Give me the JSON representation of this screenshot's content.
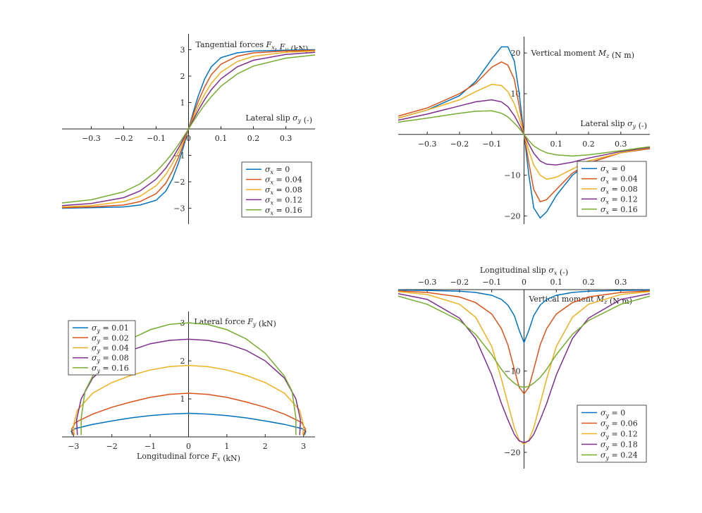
{
  "colors": [
    "#0072BD",
    "#D95319",
    "#EDB120",
    "#7E2F8E",
    "#77AC30"
  ],
  "chart_data": [
    {
      "type": "line",
      "title": "",
      "ylabel": "Tangential forces F_x, F_y (kN)",
      "xlabel": "Lateral slip σ_y (-)",
      "xlim": [
        -0.39,
        0.39
      ],
      "ylim": [
        -3.6,
        3.6
      ],
      "xticks": [
        -0.3,
        -0.2,
        -0.1,
        0,
        0.1,
        0.2,
        0.3
      ],
      "xtick_labels": [
        "−0.3",
        "−0.2",
        "−0.1",
        "0",
        "0.1",
        "0.2",
        "0.3"
      ],
      "yticks": [
        -3,
        -2,
        -1,
        1,
        2,
        3
      ],
      "ytick_labels": [
        "−3",
        "−2",
        "−1",
        "1",
        "2",
        "3"
      ],
      "legend_position": "bottom-right",
      "series": [
        {
          "name": "σ_x = 0",
          "label": "σx = 0",
          "x": [
            -0.39,
            -0.3,
            -0.2,
            -0.15,
            -0.1,
            -0.07,
            -0.05,
            -0.03,
            -0.015,
            0,
            0.015,
            0.03,
            0.05,
            0.07,
            0.1,
            0.15,
            0.2,
            0.3,
            0.39
          ],
          "y": [
            -3.0,
            -2.98,
            -2.95,
            -2.88,
            -2.7,
            -2.35,
            -1.9,
            -1.25,
            -0.65,
            0,
            0.65,
            1.25,
            1.9,
            2.35,
            2.7,
            2.88,
            2.95,
            2.98,
            3.0
          ]
        },
        {
          "name": "σ_x = 0.04",
          "label": "σx = 0.04",
          "x": [
            -0.39,
            -0.3,
            -0.2,
            -0.15,
            -0.1,
            -0.07,
            -0.05,
            -0.03,
            -0.015,
            0,
            0.015,
            0.03,
            0.05,
            0.07,
            0.1,
            0.15,
            0.2,
            0.3,
            0.39
          ],
          "y": [
            -2.98,
            -2.95,
            -2.88,
            -2.75,
            -2.45,
            -2.05,
            -1.6,
            -1.05,
            -0.55,
            0,
            0.55,
            1.05,
            1.6,
            2.05,
            2.45,
            2.75,
            2.88,
            2.95,
            2.98
          ]
        },
        {
          "name": "σ_x = 0.08",
          "label": "σx = 0.08",
          "x": [
            -0.39,
            -0.3,
            -0.2,
            -0.15,
            -0.1,
            -0.07,
            -0.05,
            -0.03,
            -0.015,
            0,
            0.015,
            0.03,
            0.05,
            0.07,
            0.1,
            0.15,
            0.2,
            0.3,
            0.39
          ],
          "y": [
            -2.95,
            -2.9,
            -2.75,
            -2.55,
            -2.15,
            -1.72,
            -1.32,
            -0.85,
            -0.43,
            0,
            0.43,
            0.85,
            1.32,
            1.72,
            2.15,
            2.55,
            2.75,
            2.9,
            2.95
          ]
        },
        {
          "name": "σ_x = 0.12",
          "label": "σx = 0.12",
          "x": [
            -0.39,
            -0.3,
            -0.2,
            -0.15,
            -0.1,
            -0.07,
            -0.05,
            -0.03,
            -0.015,
            0,
            0.015,
            0.03,
            0.05,
            0.07,
            0.1,
            0.15,
            0.2,
            0.3,
            0.39
          ],
          "y": [
            -2.9,
            -2.82,
            -2.6,
            -2.35,
            -1.9,
            -1.48,
            -1.12,
            -0.7,
            -0.36,
            0,
            0.36,
            0.7,
            1.12,
            1.48,
            1.9,
            2.35,
            2.6,
            2.82,
            2.9
          ]
        },
        {
          "name": "σ_x = 0.16",
          "label": "σx = 0.16",
          "x": [
            -0.39,
            -0.3,
            -0.2,
            -0.15,
            -0.1,
            -0.07,
            -0.05,
            -0.03,
            -0.015,
            0,
            0.015,
            0.03,
            0.05,
            0.07,
            0.1,
            0.15,
            0.2,
            0.3,
            0.39
          ],
          "y": [
            -2.8,
            -2.68,
            -2.38,
            -2.08,
            -1.62,
            -1.22,
            -0.92,
            -0.57,
            -0.29,
            0,
            0.29,
            0.57,
            0.92,
            1.22,
            1.62,
            2.08,
            2.38,
            2.68,
            2.8
          ]
        }
      ]
    },
    {
      "type": "line",
      "title": "",
      "ylabel": "Vertical moment M_z (N m)",
      "xlabel": "Lateral slip σ_y (-)",
      "xlim": [
        -0.39,
        0.39
      ],
      "ylim": [
        -22,
        24
      ],
      "xticks": [
        -0.3,
        -0.2,
        -0.1,
        0.1,
        0.2,
        0.3
      ],
      "xtick_labels": [
        "−0.3",
        "−0.2",
        "−0.1",
        "0.1",
        "0.2",
        "0.3"
      ],
      "yticks": [
        -20,
        -10,
        10,
        20
      ],
      "ytick_labels": [
        "−20",
        "−10",
        "10",
        "20"
      ],
      "legend_position": "bottom-right",
      "series": [
        {
          "name": "σ_x = 0",
          "label": "σx = 0",
          "x": [
            -0.39,
            -0.3,
            -0.2,
            -0.15,
            -0.1,
            -0.07,
            -0.05,
            -0.03,
            -0.015,
            0,
            0.015,
            0.03,
            0.05,
            0.07,
            0.1,
            0.15,
            0.2,
            0.3,
            0.39
          ],
          "y": [
            4,
            6,
            9.5,
            13,
            18.5,
            21.5,
            21.5,
            18,
            10,
            0,
            -10,
            -18,
            -20.5,
            -19,
            -15,
            -10,
            -7,
            -4.5,
            -3.5
          ]
        },
        {
          "name": "σ_x = 0.04",
          "label": "σx = 0.04",
          "x": [
            -0.39,
            -0.3,
            -0.2,
            -0.15,
            -0.1,
            -0.07,
            -0.05,
            -0.03,
            -0.015,
            0,
            0.015,
            0.03,
            0.05,
            0.07,
            0.1,
            0.15,
            0.2,
            0.3,
            0.39
          ],
          "y": [
            4.5,
            6.5,
            10,
            12.5,
            16.5,
            17.8,
            17,
            13.5,
            7,
            0,
            -7,
            -13.5,
            -16.5,
            -16,
            -13.5,
            -9.5,
            -7,
            -4.5,
            -3.5
          ]
        },
        {
          "name": "σ_x = 0.08",
          "label": "σx = 0.08",
          "x": [
            -0.39,
            -0.3,
            -0.2,
            -0.15,
            -0.1,
            -0.07,
            -0.05,
            -0.03,
            -0.015,
            0,
            0.015,
            0.03,
            0.05,
            0.07,
            0.1,
            0.15,
            0.2,
            0.3,
            0.39
          ],
          "y": [
            4,
            6,
            8.5,
            10.5,
            12.3,
            12,
            10.5,
            7.5,
            4,
            0,
            -4,
            -7.5,
            -10,
            -11,
            -10.5,
            -8.5,
            -6.5,
            -4.5,
            -3.3
          ]
        },
        {
          "name": "σ_x = 0.12",
          "label": "σx = 0.12",
          "x": [
            -0.39,
            -0.3,
            -0.2,
            -0.15,
            -0.1,
            -0.07,
            -0.05,
            -0.03,
            -0.015,
            0,
            0.015,
            0.03,
            0.05,
            0.07,
            0.1,
            0.15,
            0.2,
            0.3,
            0.39
          ],
          "y": [
            3.5,
            5,
            7,
            8,
            8.5,
            8,
            6.8,
            4.6,
            2.4,
            0,
            -2.4,
            -4.6,
            -6.5,
            -7.3,
            -7.5,
            -6.8,
            -5.8,
            -4.2,
            -3.2
          ]
        },
        {
          "name": "σ_x = 0.16",
          "label": "σx = 0.16",
          "x": [
            -0.39,
            -0.3,
            -0.2,
            -0.15,
            -0.1,
            -0.07,
            -0.05,
            -0.03,
            -0.015,
            0,
            0.015,
            0.03,
            0.05,
            0.07,
            0.1,
            0.15,
            0.2,
            0.3,
            0.39
          ],
          "y": [
            3,
            4,
            5.2,
            5.7,
            5.8,
            5.2,
            4.3,
            2.8,
            1.5,
            0,
            -1.5,
            -2.8,
            -3.8,
            -4.5,
            -5,
            -5.3,
            -5,
            -4,
            -3
          ]
        }
      ]
    },
    {
      "type": "line",
      "title": "",
      "ylabel": "Lateral force F_y (kN)",
      "xlabel": "Longitudinal force F_x (kN)",
      "xlim": [
        -3.3,
        3.3
      ],
      "ylim": [
        0,
        3.3
      ],
      "xticks": [
        -3,
        -2,
        -1,
        0,
        1,
        2,
        3
      ],
      "xtick_labels": [
        "−3",
        "−2",
        "−1",
        "0",
        "1",
        "2",
        "3"
      ],
      "yticks": [
        1,
        2,
        3
      ],
      "ytick_labels": [
        "1",
        "2",
        "3"
      ],
      "legend_position": "top-left",
      "series": [
        {
          "name": "σ_y = 0.01",
          "label": "σy = 0.01",
          "x": [
            -3.02,
            -3.06,
            -2.95,
            -2.5,
            -2,
            -1.5,
            -1,
            -0.5,
            0,
            0.5,
            1,
            1.5,
            2,
            2.5,
            2.95,
            3.06,
            3.02
          ],
          "y": [
            0.05,
            0.15,
            0.22,
            0.33,
            0.42,
            0.5,
            0.56,
            0.6,
            0.62,
            0.6,
            0.56,
            0.5,
            0.42,
            0.33,
            0.22,
            0.15,
            0.05
          ]
        },
        {
          "name": "σ_y = 0.02",
          "label": "σy = 0.02",
          "x": [
            -3.0,
            -3.05,
            -2.95,
            -2.5,
            -2,
            -1.5,
            -1,
            -0.5,
            0,
            0.5,
            1,
            1.5,
            2,
            2.5,
            2.95,
            3.05,
            3.0
          ],
          "y": [
            0.05,
            0.2,
            0.38,
            0.6,
            0.78,
            0.92,
            1.04,
            1.12,
            1.15,
            1.12,
            1.04,
            0.92,
            0.78,
            0.6,
            0.38,
            0.2,
            0.05
          ]
        },
        {
          "name": "σ_y = 0.04",
          "label": "σy = 0.04",
          "x": [
            -2.98,
            -3.0,
            -2.9,
            -2.5,
            -2,
            -1.5,
            -1,
            -0.5,
            0,
            0.5,
            1,
            1.5,
            2,
            2.5,
            2.9,
            3.0,
            2.98
          ],
          "y": [
            0.05,
            0.3,
            0.7,
            1.15,
            1.43,
            1.62,
            1.76,
            1.85,
            1.88,
            1.85,
            1.76,
            1.62,
            1.43,
            1.15,
            0.7,
            0.3,
            0.05
          ]
        },
        {
          "name": "σ_y = 0.08",
          "label": "σy = 0.08",
          "x": [
            -2.9,
            -2.92,
            -2.8,
            -2.5,
            -2,
            -1.5,
            -1,
            -0.5,
            0,
            0.5,
            1,
            1.5,
            2,
            2.5,
            2.8,
            2.92,
            2.9
          ],
          "y": [
            0.05,
            0.45,
            1.0,
            1.55,
            2.0,
            2.28,
            2.45,
            2.54,
            2.57,
            2.54,
            2.45,
            2.28,
            2.0,
            1.55,
            1.0,
            0.45,
            0.05
          ]
        },
        {
          "name": "σ_y = 0.16",
          "label": "σy = 0.16",
          "x": [
            -2.8,
            -2.8,
            -2.7,
            -2.5,
            -2,
            -1.5,
            -1,
            -0.5,
            0,
            0.5,
            1,
            1.5,
            2,
            2.5,
            2.7,
            2.8,
            2.8
          ],
          "y": [
            0.05,
            0.5,
            1.2,
            1.6,
            2.2,
            2.58,
            2.82,
            2.96,
            3.0,
            2.96,
            2.82,
            2.58,
            2.2,
            1.6,
            1.2,
            0.5,
            0.05
          ]
        }
      ]
    },
    {
      "type": "line",
      "title": "",
      "ylabel": "Vertical moment M_z (N m)",
      "xlabel": "Longitudinal slip σ_x (-)",
      "xlim": [
        -0.39,
        0.39
      ],
      "ylim": [
        -22,
        0
      ],
      "xticks": [
        -0.3,
        -0.2,
        -0.1,
        0,
        0.1,
        0.2,
        0.3
      ],
      "xtick_labels": [
        "−0.3",
        "−0.2",
        "−0.1",
        "0",
        "0.1",
        "0.2",
        "0.3"
      ],
      "yticks": [
        -20,
        -10
      ],
      "ytick_labels": [
        "−20",
        "−10"
      ],
      "legend_position": "bottom-right",
      "series": [
        {
          "name": "σ_y = 0",
          "label": "σy = 0",
          "x": [
            -0.39,
            -0.3,
            -0.2,
            -0.15,
            -0.1,
            -0.07,
            -0.05,
            -0.03,
            -0.015,
            0,
            0.015,
            0.03,
            0.05,
            0.07,
            0.1,
            0.15,
            0.2,
            0.3,
            0.39
          ],
          "y": [
            -0.05,
            -0.1,
            -0.2,
            -0.35,
            -0.7,
            -1.2,
            -1.9,
            -3.2,
            -5.0,
            -6.5,
            -5.0,
            -3.2,
            -1.9,
            -1.2,
            -0.7,
            -0.35,
            -0.2,
            -0.1,
            -0.05
          ]
        },
        {
          "name": "σ_y = 0.06",
          "label": "σy = 0.06",
          "x": [
            -0.39,
            -0.3,
            -0.2,
            -0.15,
            -0.1,
            -0.07,
            -0.05,
            -0.03,
            -0.015,
            0,
            0.015,
            0.03,
            0.05,
            0.07,
            0.1,
            0.15,
            0.2,
            0.3,
            0.39
          ],
          "y": [
            -0.15,
            -0.35,
            -0.9,
            -1.6,
            -3.0,
            -4.8,
            -6.8,
            -9.8,
            -12.0,
            -12.8,
            -12.0,
            -9.8,
            -6.8,
            -4.8,
            -3.0,
            -1.6,
            -0.9,
            -0.35,
            -0.15
          ]
        },
        {
          "name": "σ_y = 0.12",
          "label": "σy = 0.12",
          "x": [
            -0.39,
            -0.3,
            -0.2,
            -0.15,
            -0.1,
            -0.07,
            -0.05,
            -0.03,
            -0.015,
            0,
            0.015,
            0.03,
            0.05,
            0.07,
            0.1,
            0.15,
            0.2,
            0.3,
            0.39
          ],
          "y": [
            -0.25,
            -0.6,
            -1.8,
            -3.4,
            -7.0,
            -11.0,
            -14.0,
            -17.0,
            -18.5,
            -19.0,
            -18.5,
            -17.0,
            -14.0,
            -11.0,
            -7.0,
            -3.4,
            -1.8,
            -0.6,
            -0.25
          ]
        },
        {
          "name": "σ_y = 0.18",
          "label": "σy = 0.18",
          "x": [
            -0.39,
            -0.3,
            -0.2,
            -0.15,
            -0.1,
            -0.07,
            -0.05,
            -0.03,
            -0.015,
            0,
            0.015,
            0.03,
            0.05,
            0.07,
            0.1,
            0.15,
            0.2,
            0.3,
            0.39
          ],
          "y": [
            -0.5,
            -1.2,
            -3.5,
            -6.0,
            -10.5,
            -14.0,
            -16.0,
            -17.8,
            -18.6,
            -18.8,
            -18.6,
            -17.8,
            -16.0,
            -14.0,
            -10.5,
            -6.0,
            -3.5,
            -1.2,
            -0.5
          ]
        },
        {
          "name": "σ_y = 0.24",
          "label": "σy = 0.24",
          "x": [
            -0.39,
            -0.3,
            -0.2,
            -0.15,
            -0.1,
            -0.07,
            -0.05,
            -0.03,
            -0.015,
            0,
            0.015,
            0.03,
            0.05,
            0.07,
            0.1,
            0.15,
            0.2,
            0.3,
            0.39
          ],
          "y": [
            -0.8,
            -1.8,
            -3.8,
            -5.5,
            -8.0,
            -9.8,
            -10.8,
            -11.5,
            -11.9,
            -12.0,
            -11.9,
            -11.5,
            -10.8,
            -9.8,
            -8.0,
            -5.5,
            -3.8,
            -1.8,
            -0.8
          ]
        }
      ]
    }
  ]
}
